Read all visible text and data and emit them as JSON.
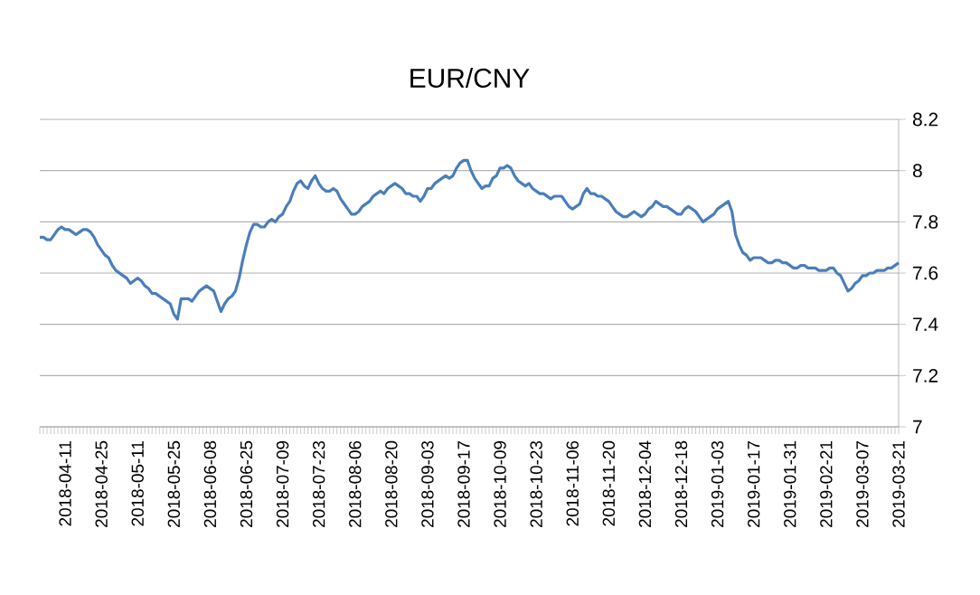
{
  "chart_data": {
    "type": "line",
    "title": "EUR/CNY",
    "categories": [
      null,
      null,
      null,
      null,
      null,
      null,
      null,
      "2018-04-11",
      null,
      null,
      null,
      null,
      null,
      null,
      null,
      null,
      null,
      "2018-04-25",
      null,
      null,
      null,
      null,
      null,
      null,
      null,
      null,
      null,
      "2018-05-11",
      null,
      null,
      null,
      null,
      null,
      null,
      null,
      null,
      null,
      "2018-05-25",
      null,
      null,
      null,
      null,
      null,
      null,
      null,
      null,
      null,
      "2018-06-08",
      null,
      null,
      null,
      null,
      null,
      null,
      null,
      null,
      null,
      "2018-06-25",
      null,
      null,
      null,
      null,
      null,
      null,
      null,
      null,
      null,
      "2018-07-09",
      null,
      null,
      null,
      null,
      null,
      null,
      null,
      null,
      null,
      "2018-07-23",
      null,
      null,
      null,
      null,
      null,
      null,
      null,
      null,
      null,
      "2018-08-06",
      null,
      null,
      null,
      null,
      null,
      null,
      null,
      null,
      null,
      "2018-08-20",
      null,
      null,
      null,
      null,
      null,
      null,
      null,
      null,
      null,
      "2018-09-03",
      null,
      null,
      null,
      null,
      null,
      null,
      null,
      null,
      null,
      "2018-09-17",
      null,
      null,
      null,
      null,
      null,
      null,
      null,
      null,
      null,
      "2018-10-09",
      null,
      null,
      null,
      null,
      null,
      null,
      null,
      null,
      null,
      "2018-10-23",
      null,
      null,
      null,
      null,
      null,
      null,
      null,
      null,
      null,
      "2018-11-06",
      null,
      null,
      null,
      null,
      null,
      null,
      null,
      null,
      null,
      "2018-11-20",
      null,
      null,
      null,
      null,
      null,
      null,
      null,
      null,
      null,
      "2018-12-04",
      null,
      null,
      null,
      null,
      null,
      null,
      null,
      null,
      null,
      "2018-12-18",
      null,
      null,
      null,
      null,
      null,
      null,
      null,
      null,
      null,
      "2019-01-03",
      null,
      null,
      null,
      null,
      null,
      null,
      null,
      null,
      null,
      "2019-01-17",
      null,
      null,
      null,
      null,
      null,
      null,
      null,
      null,
      null,
      "2019-01-31",
      null,
      null,
      null,
      null,
      null,
      null,
      null,
      null,
      null,
      "2019-02-21",
      null,
      null,
      null,
      null,
      null,
      null,
      null,
      null,
      null,
      "2019-03-07",
      null,
      null,
      null,
      null,
      null,
      null,
      null,
      null,
      null,
      "2019-03-21"
    ],
    "series": [
      {
        "color": "#4a7ebb",
        "values": [
          7.74,
          7.74,
          7.73,
          7.73,
          7.75,
          7.77,
          7.78,
          7.77,
          7.77,
          7.76,
          7.75,
          7.76,
          7.77,
          7.77,
          7.76,
          7.74,
          7.71,
          7.69,
          7.67,
          7.66,
          7.63,
          7.61,
          7.6,
          7.59,
          7.58,
          7.56,
          7.57,
          7.58,
          7.57,
          7.55,
          7.54,
          7.52,
          7.52,
          7.51,
          7.5,
          7.49,
          7.48,
          7.44,
          7.42,
          7.5,
          7.5,
          7.5,
          7.49,
          7.51,
          7.53,
          7.54,
          7.55,
          7.54,
          7.53,
          7.49,
          7.45,
          7.48,
          7.5,
          7.51,
          7.53,
          7.58,
          7.65,
          7.71,
          7.76,
          7.79,
          7.79,
          7.78,
          7.78,
          7.8,
          7.81,
          7.8,
          7.82,
          7.83,
          7.86,
          7.88,
          7.92,
          7.95,
          7.96,
          7.94,
          7.93,
          7.96,
          7.98,
          7.95,
          7.93,
          7.92,
          7.92,
          7.93,
          7.92,
          7.89,
          7.87,
          7.85,
          7.83,
          7.83,
          7.84,
          7.86,
          7.87,
          7.88,
          7.9,
          7.91,
          7.92,
          7.91,
          7.93,
          7.94,
          7.95,
          7.94,
          7.93,
          7.91,
          7.91,
          7.9,
          7.9,
          7.88,
          7.9,
          7.93,
          7.93,
          7.95,
          7.96,
          7.97,
          7.98,
          7.97,
          7.98,
          8.01,
          8.03,
          8.04,
          8.04,
          8.0,
          7.97,
          7.95,
          7.93,
          7.94,
          7.94,
          7.97,
          7.98,
          8.01,
          8.01,
          8.02,
          8.01,
          7.98,
          7.96,
          7.95,
          7.94,
          7.95,
          7.93,
          7.92,
          7.91,
          7.91,
          7.9,
          7.89,
          7.9,
          7.9,
          7.9,
          7.88,
          7.86,
          7.85,
          7.86,
          7.87,
          7.91,
          7.93,
          7.91,
          7.91,
          7.9,
          7.9,
          7.89,
          7.88,
          7.86,
          7.84,
          7.83,
          7.82,
          7.82,
          7.83,
          7.84,
          7.83,
          7.82,
          7.83,
          7.85,
          7.86,
          7.88,
          7.87,
          7.86,
          7.86,
          7.85,
          7.84,
          7.83,
          7.83,
          7.85,
          7.86,
          7.85,
          7.84,
          7.82,
          7.8,
          7.81,
          7.82,
          7.83,
          7.85,
          7.86,
          7.87,
          7.88,
          7.84,
          7.75,
          7.71,
          7.68,
          7.67,
          7.65,
          7.66,
          7.66,
          7.66,
          7.65,
          7.64,
          7.64,
          7.65,
          7.65,
          7.64,
          7.64,
          7.63,
          7.62,
          7.62,
          7.63,
          7.63,
          7.62,
          7.62,
          7.62,
          7.61,
          7.61,
          7.61,
          7.62,
          7.62,
          7.6,
          7.59,
          7.56,
          7.53,
          7.54,
          7.56,
          7.57,
          7.59,
          7.59,
          7.6,
          7.6,
          7.61,
          7.61,
          7.61,
          7.62,
          7.62,
          7.63,
          7.64
        ]
      }
    ],
    "ylim": [
      7,
      8.2
    ],
    "yticks": [
      7,
      7.2,
      7.4,
      7.6,
      7.8,
      8,
      8.2
    ],
    "grid": "y",
    "marker": "none",
    "line_style": "solid"
  }
}
